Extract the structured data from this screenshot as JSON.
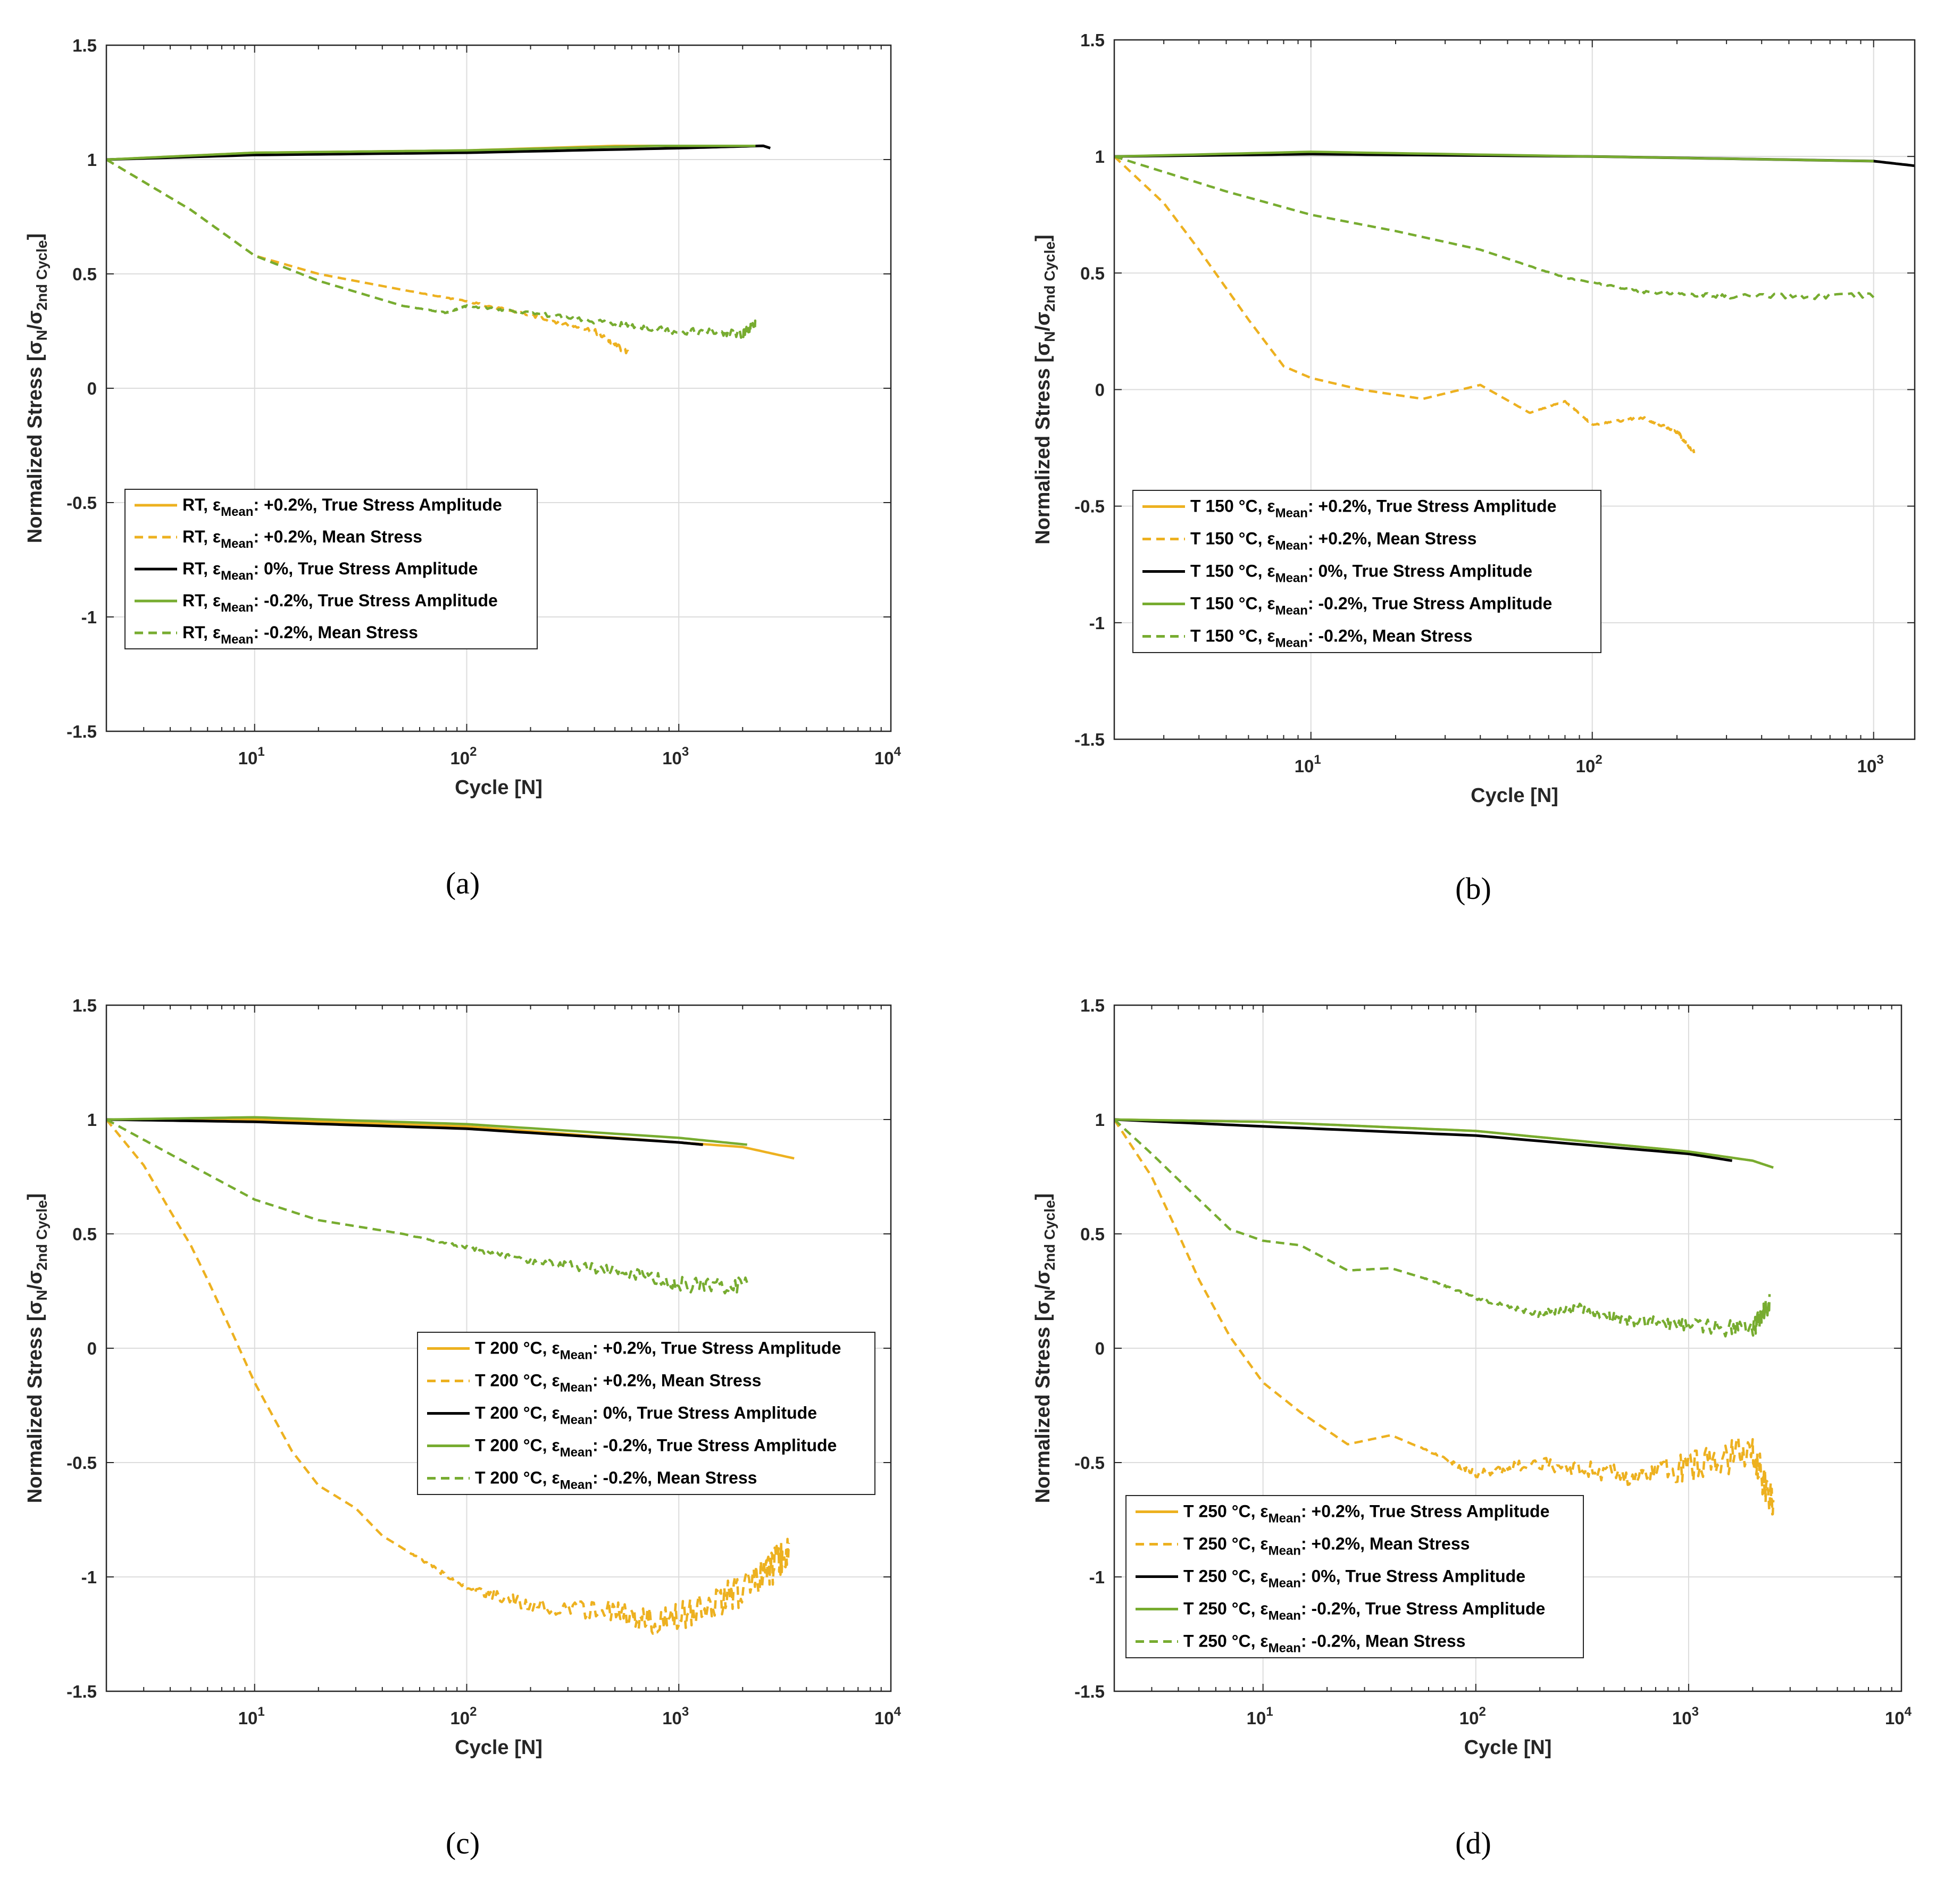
{
  "chart_data": [
    {
      "type": "line",
      "panel": "(a)",
      "xlabel": "Cycle [N]",
      "ylabel": "Normalized Stress [σN/σ2nd Cycle]",
      "xscale": "log",
      "xlim": [
        2,
        10000
      ],
      "ylim": [
        -1.5,
        1.5
      ],
      "yticks": [
        "1.5",
        "1",
        "0.5",
        "0",
        "-0.5",
        "-1",
        "-1.5"
      ],
      "xticks": [
        10,
        100,
        1000,
        10000
      ],
      "grid": true,
      "legend_position": "middle-left",
      "series": [
        {
          "name": "RT, εMean: +0.2%, True Stress Amplitude",
          "legend": [
            "RT, ε",
            "Mean",
            ": +0.2%, True Stress Amplitude"
          ],
          "color": "#EDB120",
          "style": "solid",
          "x": [
            2,
            10,
            100,
            500,
            1000,
            2500
          ],
          "y": [
            1.0,
            1.03,
            1.04,
            1.06,
            1.06,
            1.06
          ]
        },
        {
          "name": "RT, εMean: +0.2%, Mean Stress",
          "legend": [
            "RT, ε",
            "Mean",
            ": +0.2%, Mean Stress"
          ],
          "color": "#EDB120",
          "style": "dashed",
          "x": [
            2,
            5,
            10,
            20,
            50,
            100,
            200,
            400,
            580
          ],
          "y": [
            1.0,
            0.78,
            0.58,
            0.5,
            0.43,
            0.38,
            0.32,
            0.25,
            0.15
          ]
        },
        {
          "name": "RT, εMean: 0%, True Stress Amplitude",
          "legend": [
            "RT, ε",
            "Mean",
            ": 0%, True Stress Amplitude"
          ],
          "color": "#000000",
          "style": "solid",
          "x": [
            2,
            10,
            100,
            1000,
            2500,
            2700
          ],
          "y": [
            1.0,
            1.02,
            1.03,
            1.05,
            1.06,
            1.05
          ]
        },
        {
          "name": "RT, εMean: -0.2%, True Stress Amplitude",
          "legend": [
            "RT, ε",
            "Mean",
            ": -0.2%, True Stress Amplitude"
          ],
          "color": "#77AC30",
          "style": "solid",
          "x": [
            2,
            10,
            100,
            800,
            2000,
            2300
          ],
          "y": [
            1.0,
            1.03,
            1.04,
            1.06,
            1.06,
            1.06
          ]
        },
        {
          "name": "RT, εMean: -0.2%, Mean Stress",
          "legend": [
            "RT, ε",
            "Mean",
            ": -0.2%, Mean Stress"
          ],
          "color": "#77AC30",
          "style": "dashed",
          "x": [
            2,
            5,
            10,
            20,
            50,
            80,
            100,
            200,
            500,
            1000,
            2000,
            2300
          ],
          "y": [
            1.0,
            0.78,
            0.58,
            0.47,
            0.36,
            0.33,
            0.36,
            0.33,
            0.28,
            0.25,
            0.24,
            0.28
          ]
        }
      ]
    },
    {
      "type": "line",
      "panel": "(b)",
      "xlabel": "Cycle [N]",
      "ylabel": "Normalized Stress [σN/σ2nd Cycle]",
      "xscale": "log",
      "xlim": [
        2,
        1400
      ],
      "ylim": [
        -1.5,
        1.5
      ],
      "yticks": [
        "1.5",
        "1",
        "0.5",
        "0",
        "-0.5",
        "-1",
        "-1.5"
      ],
      "xticks": [
        10,
        100,
        1000
      ],
      "grid": true,
      "legend_position": "middle-left",
      "series": [
        {
          "name": "T 150 °C, εMean: +0.2%, True Stress Amplitude",
          "legend": [
            "T 150 °C, ε",
            "Mean",
            ": +0.2%, True Stress Amplitude"
          ],
          "color": "#EDB120",
          "style": "solid",
          "x": [
            2,
            10,
            100,
            1000
          ],
          "y": [
            1.0,
            1.01,
            1.0,
            0.98
          ]
        },
        {
          "name": "T 150 °C, εMean: +0.2%, Mean Stress",
          "legend": [
            "T 150 °C, ε",
            "Mean",
            ": +0.2%, Mean Stress"
          ],
          "color": "#EDB120",
          "style": "dashed",
          "x": [
            2,
            3,
            4,
            6,
            8,
            10,
            15,
            25,
            40,
            60,
            80,
            100,
            150,
            200,
            230
          ],
          "y": [
            1.0,
            0.8,
            0.6,
            0.3,
            0.1,
            0.05,
            0.0,
            -0.04,
            0.02,
            -0.1,
            -0.05,
            -0.15,
            -0.12,
            -0.18,
            -0.27
          ]
        },
        {
          "name": "T 150 °C, εMean: 0%, True Stress Amplitude",
          "legend": [
            "T 150 °C, ε",
            "Mean",
            ": 0%, True Stress Amplitude"
          ],
          "color": "#000000",
          "style": "solid",
          "x": [
            2,
            10,
            100,
            1000,
            1400
          ],
          "y": [
            1.0,
            1.01,
            1.0,
            0.98,
            0.96
          ]
        },
        {
          "name": "T 150 °C, εMean: -0.2%, True Stress Amplitude",
          "legend": [
            "T 150 °C, ε",
            "Mean",
            ": -0.2%, True Stress Amplitude"
          ],
          "color": "#77AC30",
          "style": "solid",
          "x": [
            2,
            10,
            100,
            1000
          ],
          "y": [
            1.0,
            1.02,
            1.0,
            0.98
          ]
        },
        {
          "name": "T 150 °C, εMean: -0.2%, Mean Stress",
          "legend": [
            "T 150 °C, ε",
            "Mean",
            ": -0.2%, Mean Stress"
          ],
          "color": "#77AC30",
          "style": "dashed",
          "x": [
            2,
            5,
            10,
            20,
            40,
            80,
            150,
            300,
            1000
          ],
          "y": [
            1.0,
            0.85,
            0.75,
            0.68,
            0.6,
            0.48,
            0.42,
            0.4,
            0.4
          ]
        }
      ]
    },
    {
      "type": "line",
      "panel": "(c)",
      "xlabel": "Cycle [N]",
      "ylabel": "Normalized Stress [σN/σ2nd Cycle]",
      "xscale": "log",
      "xlim": [
        2,
        10000
      ],
      "ylim": [
        -1.5,
        1.5
      ],
      "yticks": [
        "1.5",
        "1",
        "0.5",
        "0",
        "-0.5",
        "-1",
        "-1.5"
      ],
      "xticks": [
        10,
        100,
        1000,
        10000
      ],
      "grid": true,
      "legend_position": "middle-right",
      "series": [
        {
          "name": "T 200 °C, εMean: +0.2%, True Stress Amplitude",
          "legend": [
            "T 200 °C, ε",
            "Mean",
            ": +0.2%, True Stress Amplitude"
          ],
          "color": "#EDB120",
          "style": "solid",
          "x": [
            2,
            10,
            100,
            1000,
            2000,
            3500
          ],
          "y": [
            1.0,
            1.0,
            0.97,
            0.9,
            0.88,
            0.83
          ]
        },
        {
          "name": "T 200 °C, εMean: +0.2%, Mean Stress",
          "legend": [
            "T 200 °C, ε",
            "Mean",
            ": +0.2%, Mean Stress"
          ],
          "color": "#EDB120",
          "style": "dashed",
          "x": [
            2,
            3,
            4,
            5,
            6,
            8,
            10,
            15,
            20,
            30,
            40,
            60,
            100,
            200,
            500,
            800,
            1500,
            2500,
            3300
          ],
          "y": [
            1.0,
            0.8,
            0.6,
            0.45,
            0.3,
            0.05,
            -0.15,
            -0.45,
            -0.6,
            -0.7,
            -0.82,
            -0.92,
            -1.05,
            -1.12,
            -1.15,
            -1.2,
            -1.12,
            -1.0,
            -0.9
          ]
        },
        {
          "name": "T 200 °C, εMean: 0%, True Stress Amplitude",
          "legend": [
            "T 200 °C, ε",
            "Mean",
            ": 0%, True Stress Amplitude"
          ],
          "color": "#000000",
          "style": "solid",
          "x": [
            2,
            10,
            100,
            1000,
            1300
          ],
          "y": [
            1.0,
            0.99,
            0.96,
            0.9,
            0.89
          ]
        },
        {
          "name": "T 200 °C, εMean: -0.2%, True Stress Amplitude",
          "legend": [
            "T 200 °C, ε",
            "Mean",
            ": -0.2%, True Stress Amplitude"
          ],
          "color": "#77AC30",
          "style": "solid",
          "x": [
            2,
            10,
            100,
            1000,
            2100
          ],
          "y": [
            1.0,
            1.01,
            0.98,
            0.92,
            0.89
          ]
        },
        {
          "name": "T 200 °C, εMean: -0.2%, Mean Stress",
          "legend": [
            "T 200 °C, ε",
            "Mean",
            ": -0.2%, Mean Stress"
          ],
          "color": "#77AC30",
          "style": "dashed",
          "x": [
            2,
            5,
            10,
            20,
            50,
            100,
            200,
            500,
            1000,
            2100
          ],
          "y": [
            1.0,
            0.8,
            0.65,
            0.56,
            0.5,
            0.44,
            0.38,
            0.34,
            0.28,
            0.27
          ]
        }
      ]
    },
    {
      "type": "line",
      "panel": "(d)",
      "xlabel": "Cycle [N]",
      "ylabel": "Normalized Stress [σN/σ2nd Cycle]",
      "xscale": "log",
      "xlim": [
        2,
        10000
      ],
      "ylim": [
        -1.5,
        1.5
      ],
      "yticks": [
        "1.5",
        "1",
        "0.5",
        "0",
        "-0.5",
        "-1",
        "-1.5"
      ],
      "xticks": [
        10,
        100,
        1000,
        10000
      ],
      "grid": true,
      "legend_position": "bottom-left",
      "series": [
        {
          "name": "T 250 °C, εMean: +0.2%, True Stress Amplitude",
          "legend": [
            "T 250 °C, ε",
            "Mean",
            ": +0.2%, True Stress Amplitude"
          ],
          "color": "#EDB120",
          "style": "solid",
          "x": [
            2,
            10,
            100,
            1000,
            2000,
            2500
          ],
          "y": [
            1.0,
            0.99,
            0.95,
            0.86,
            0.82,
            0.79
          ]
        },
        {
          "name": "T 250 °C, εMean: +0.2%, Mean Stress",
          "legend": [
            "T 250 °C, ε",
            "Mean",
            ": +0.2%, Mean Stress"
          ],
          "color": "#EDB120",
          "style": "dashed",
          "x": [
            2,
            3,
            4,
            5,
            7,
            10,
            15,
            25,
            40,
            60,
            100,
            200,
            500,
            1000,
            2000,
            2500
          ],
          "y": [
            1.0,
            0.75,
            0.5,
            0.3,
            0.05,
            -0.15,
            -0.28,
            -0.42,
            -0.38,
            -0.45,
            -0.55,
            -0.5,
            -0.55,
            -0.52,
            -0.45,
            -0.7
          ]
        },
        {
          "name": "T 250 °C, εMean: 0%, True Stress Amplitude",
          "legend": [
            "T 250 °C, ε",
            "Mean",
            ": 0%, True Stress Amplitude"
          ],
          "color": "#000000",
          "style": "solid",
          "x": [
            2,
            10,
            100,
            1000,
            1600
          ],
          "y": [
            1.0,
            0.97,
            0.93,
            0.85,
            0.82
          ]
        },
        {
          "name": "T 250 °C, εMean: -0.2%, True Stress Amplitude",
          "legend": [
            "T 250 °C, ε",
            "Mean",
            ": -0.2%, True Stress Amplitude"
          ],
          "color": "#77AC30",
          "style": "solid",
          "x": [
            2,
            10,
            100,
            1000,
            2000,
            2500
          ],
          "y": [
            1.0,
            0.99,
            0.95,
            0.86,
            0.82,
            0.79
          ]
        },
        {
          "name": "T 250 °C, εMean: -0.2%, Mean Stress",
          "legend": [
            "T 250 °C, ε",
            "Mean",
            ": -0.2%, Mean Stress"
          ],
          "color": "#77AC30",
          "style": "dashed",
          "x": [
            2,
            3,
            5,
            7,
            10,
            15,
            25,
            40,
            60,
            100,
            200,
            300,
            500,
            1000,
            2000,
            2400
          ],
          "y": [
            1.0,
            0.85,
            0.65,
            0.52,
            0.47,
            0.45,
            0.34,
            0.35,
            0.3,
            0.22,
            0.15,
            0.18,
            0.12,
            0.1,
            0.08,
            0.2
          ]
        }
      ]
    }
  ]
}
